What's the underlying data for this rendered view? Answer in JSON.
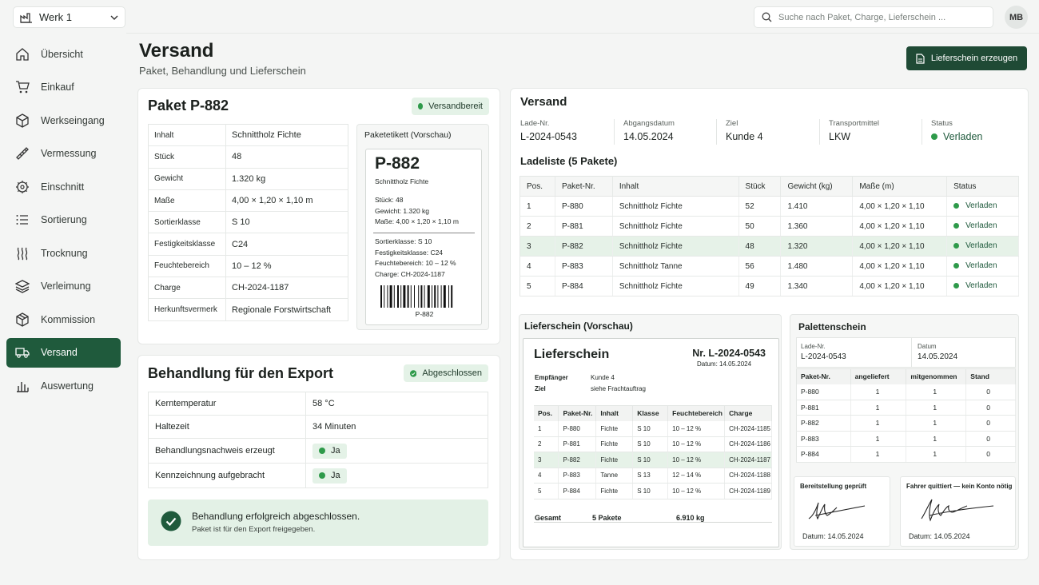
{
  "plant": {
    "label": "Werk 1"
  },
  "search": {
    "placeholder": "Suche nach Paket, Charge, Lieferschein ..."
  },
  "user": {
    "initials": "MB"
  },
  "nav": [
    {
      "label": "Übersicht",
      "icon": "home-icon"
    },
    {
      "label": "Einkauf",
      "icon": "cart-icon"
    },
    {
      "label": "Werkseingang",
      "icon": "box-icon"
    },
    {
      "label": "Vermessung",
      "icon": "ruler-icon"
    },
    {
      "label": "Einschnitt",
      "icon": "saw-blade-icon"
    },
    {
      "label": "Sortierung",
      "icon": "list-icon"
    },
    {
      "label": "Trocknung",
      "icon": "heat-waves-icon"
    },
    {
      "label": "Verleimung",
      "icon": "layers-icon"
    },
    {
      "label": "Kommission",
      "icon": "package-icon"
    },
    {
      "label": "Versand",
      "icon": "truck-icon",
      "active": true
    },
    {
      "label": "Auswertung",
      "icon": "bar-chart-icon"
    }
  ],
  "header": {
    "title": "Versand",
    "subtitle": "Paket, Behandlung und Lieferschein",
    "action_label": "Lieferschein erzeugen"
  },
  "package": {
    "title": "Paket P-882",
    "status": "Versandbereit",
    "rows": [
      {
        "key": "Inhalt",
        "value": "Schnittholz Fichte"
      },
      {
        "key": "Stück",
        "value": "48"
      },
      {
        "key": "Gewicht",
        "value": "1.320 kg"
      },
      {
        "key": "Maße",
        "value": "4,00 × 1,20 × 1,10 m"
      },
      {
        "key": "Sortierklasse",
        "value": "S 10"
      },
      {
        "key": "Festigkeitsklasse",
        "value": "C24"
      },
      {
        "key": "Feuchtebereich",
        "value": "10 – 12 %"
      },
      {
        "key": "Charge",
        "value": "CH-2024-1187"
      },
      {
        "key": "Herkunftsvermerk",
        "value": "Regionale Forstwirtschaft"
      }
    ],
    "label": {
      "title": "Paketetikett (Vorschau)",
      "id": "P-882",
      "content": "Schnittholz Fichte",
      "lines1": [
        "Stück: 48",
        "Gewicht: 1.320 kg",
        "Maße: 4,00 × 1,20 × 1,10 m"
      ],
      "lines2": [
        "Sortierklasse: S 10",
        "Festigkeitsklasse: C24",
        "Feuchtebereich: 10 – 12 %",
        "Charge: CH-2024-1187"
      ],
      "barcode_text": "P-882"
    }
  },
  "treatment": {
    "title": "Behandlung für den Export",
    "status": "Abgeschlossen",
    "rows": [
      {
        "key": "Kerntemperatur",
        "value": "58 °C"
      },
      {
        "key": "Haltezeit",
        "value": "34 Minuten"
      },
      {
        "key": "Behandlungsnachweis erzeugt",
        "value": "Ja"
      },
      {
        "key": "Kennzeichnung aufgebracht",
        "value": "Ja"
      }
    ],
    "success_title": "Behandlung erfolgreich abgeschlossen.",
    "success_text": "Paket ist für den Export freigegeben."
  },
  "shipment": {
    "title": "Versand",
    "meta": [
      {
        "label": "Lade-Nr.",
        "value": "L-2024-0543"
      },
      {
        "label": "Abgangsdatum",
        "value": "14.05.2024"
      },
      {
        "label": "Ziel",
        "value": "Kunde 4"
      },
      {
        "label": "Transportmittel",
        "value": "LKW"
      },
      {
        "label": "Status",
        "value": "Verladen"
      }
    ],
    "loadlist_title": "Ladeliste (5 Pakete)",
    "columns": [
      "Pos.",
      "Paket-Nr.",
      "Inhalt",
      "Stück",
      "Gewicht (kg)",
      "Maße (m)",
      "Status"
    ],
    "rows": [
      [
        "1",
        "P-880",
        "Schnittholz Fichte",
        "52",
        "1.410",
        "4,00 × 1,20 × 1,10",
        "Verladen"
      ],
      [
        "2",
        "P-881",
        "Schnittholz Fichte",
        "50",
        "1.360",
        "4,00 × 1,20 × 1,10",
        "Verladen"
      ],
      [
        "3",
        "P-882",
        "Schnittholz Fichte",
        "48",
        "1.320",
        "4,00 × 1,20 × 1,10",
        "Verladen"
      ],
      [
        "4",
        "P-883",
        "Schnittholz Tanne",
        "56",
        "1.480",
        "4,00 × 1,20 × 1,10",
        "Verladen"
      ],
      [
        "5",
        "P-884",
        "Schnittholz Fichte",
        "49",
        "1.340",
        "4,00 × 1,20 × 1,10",
        "Verladen"
      ]
    ],
    "highlight_row": 2
  },
  "delivery_note": {
    "title": "Lieferschein (Vorschau)",
    "doc_title": "Lieferschein",
    "number": "Nr. L-2024-0543",
    "date": "Datum: 14.05.2024",
    "recipient_label": "Empfänger",
    "recipient_value": "Kunde 4",
    "target_label": "Ziel",
    "target_value": "siehe Frachtauftrag",
    "columns": [
      "Pos.",
      "Paket-Nr.",
      "Inhalt",
      "Klasse",
      "Feuchtebereich",
      "Charge"
    ],
    "rows": [
      [
        "1",
        "P-880",
        "Fichte",
        "S 10",
        "10 – 12 %",
        "CH-2024-1185"
      ],
      [
        "2",
        "P-881",
        "Fichte",
        "S 10",
        "10 – 12 %",
        "CH-2024-1186"
      ],
      [
        "3",
        "P-882",
        "Fichte",
        "S 10",
        "10 – 12 %",
        "CH-2024-1187"
      ],
      [
        "4",
        "P-883",
        "Tanne",
        "S 13",
        "12 – 14 %",
        "CH-2024-1188"
      ],
      [
        "5",
        "P-884",
        "Fichte",
        "S 10",
        "10 – 12 %",
        "CH-2024-1189"
      ]
    ],
    "total_label": "Gesamt",
    "total_packages": "5 Pakete",
    "total_weight": "6.910 kg"
  },
  "pallet": {
    "title": "Palettenschein",
    "load_label": "Lade-Nr.",
    "load_value": "L-2024-0543",
    "date_label": "Datum",
    "date_value": "14.05.2024",
    "columns": [
      "Paket-Nr.",
      "angeliefert",
      "mitgenommen",
      "Stand"
    ],
    "rows": [
      [
        "P-880",
        "1",
        "1",
        "0"
      ],
      [
        "P-881",
        "1",
        "1",
        "0"
      ],
      [
        "P-882",
        "1",
        "1",
        "0"
      ],
      [
        "P-883",
        "1",
        "1",
        "0"
      ],
      [
        "P-884",
        "1",
        "1",
        "0"
      ]
    ],
    "sig1_title": "Bereitstellung geprüft",
    "sig1_date": "Datum: 14.05.2024",
    "sig2_title": "Fahrer quittiert — kein Konto nötig",
    "sig2_date": "Datum: 14.05.2024"
  },
  "colors": {
    "accent": "#1f5a3c",
    "status_green": "#2e9a4a",
    "highlight": "#e6f2e8"
  }
}
